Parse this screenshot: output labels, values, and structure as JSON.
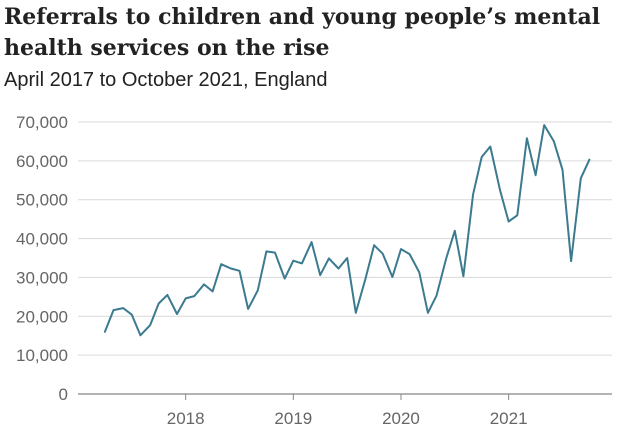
{
  "chart_data": {
    "type": "line",
    "title": "Referrals to children and young people’s mental health services on the rise",
    "subtitle": "April 2017 to October 2021, England",
    "xlabel": "",
    "ylabel": "",
    "ylim": [
      0,
      70000
    ],
    "y_ticks": [
      0,
      10000,
      20000,
      30000,
      40000,
      50000,
      60000,
      70000
    ],
    "y_tick_labels": [
      "0",
      "10,000",
      "20,000",
      "30,000",
      "40,000",
      "50,000",
      "60,000",
      "70,000"
    ],
    "x_ticks": [
      2018,
      2019,
      2020,
      2021
    ],
    "x_tick_labels": [
      "2018",
      "2019",
      "2020",
      "2021"
    ],
    "grid": true,
    "series": [
      {
        "name": "Referrals",
        "color": "#3b7a8f",
        "x": [
          2017.25,
          2017.33,
          2017.42,
          2017.5,
          2017.58,
          2017.67,
          2017.75,
          2017.83,
          2017.92,
          2018.0,
          2018.08,
          2018.17,
          2018.25,
          2018.33,
          2018.42,
          2018.5,
          2018.58,
          2018.67,
          2018.75,
          2018.83,
          2018.92,
          2019.0,
          2019.08,
          2019.17,
          2019.25,
          2019.33,
          2019.42,
          2019.5,
          2019.58,
          2019.67,
          2019.75,
          2019.83,
          2019.92,
          2020.0,
          2020.08,
          2020.17,
          2020.25,
          2020.33,
          2020.42,
          2020.5,
          2020.58,
          2020.67,
          2020.75,
          2020.83,
          2020.92,
          2021.0,
          2021.08,
          2021.17,
          2021.25,
          2021.33,
          2021.42,
          2021.5,
          2021.58,
          2021.67,
          2021.75
        ],
        "values": [
          16000,
          21600,
          22100,
          20400,
          15100,
          17700,
          23300,
          25500,
          20600,
          24600,
          25200,
          28200,
          26400,
          33400,
          32300,
          31700,
          21900,
          26700,
          36700,
          36400,
          29700,
          34300,
          33600,
          39100,
          30600,
          34900,
          32300,
          35000,
          20900,
          29700,
          38300,
          36100,
          30100,
          37300,
          36000,
          31300,
          20900,
          25300,
          34900,
          42000,
          30300,
          51400,
          61000,
          63700,
          52500,
          44400,
          46000,
          65800,
          56300,
          69200,
          65000,
          57700,
          34200,
          55500,
          60300
        ]
      }
    ]
  }
}
